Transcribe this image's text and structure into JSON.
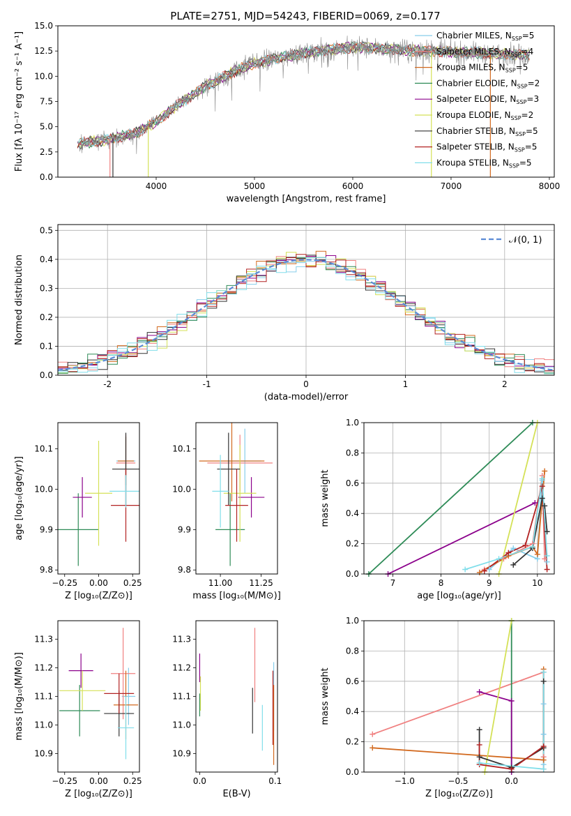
{
  "title": "PLATE=2751, MJD=54243, FIBERID=0069, z=0.177",
  "colors": {
    "Chabrier MILES": "#87ceeb",
    "Salpeter MILES": "#f08080",
    "Kroupa MILES": "#d2691e",
    "Chabrier ELODIE": "#2e8b57",
    "Salpeter ELODIE": "#8b008b",
    "Kroupa ELODIE": "#d4e157",
    "Chabrier STELIB": "#333333",
    "Salpeter STELIB": "#b22222",
    "Kroupa STELIB": "#80deea"
  },
  "chart_data": [
    {
      "id": "spectrum",
      "type": "line",
      "xlabel": "wavelength [Angstrom, rest frame]",
      "ylabel": "Flux [fλ 10⁻¹⁷ erg cm⁻² s⁻¹ A⁻¹]",
      "xlim": [
        3000,
        8050
      ],
      "ylim": [
        0,
        15
      ],
      "xticks": [
        4000,
        5000,
        6000,
        7000,
        8000
      ],
      "yticks": [
        0.0,
        2.5,
        5.0,
        7.5,
        10.0,
        12.5,
        15.0
      ],
      "legend_position": "top-right",
      "legend": [
        {
          "model": "Chabrier MILES",
          "nssp": "5"
        },
        {
          "model": "Salpeter MILES",
          "nssp": "4"
        },
        {
          "model": "Kroupa MILES",
          "nssp": "5"
        },
        {
          "model": "Chabrier ELODIE",
          "nssp": "2"
        },
        {
          "model": "Salpeter ELODIE",
          "nssp": "3"
        },
        {
          "model": "Kroupa ELODIE",
          "nssp": "2"
        },
        {
          "model": "Chabrier STELIB",
          "nssp": "5"
        },
        {
          "model": "Salpeter STELIB",
          "nssp": "5"
        },
        {
          "model": "Kroupa STELIB",
          "nssp": "5"
        }
      ],
      "continuum": {
        "x": [
          3200,
          3500,
          3800,
          4000,
          4200,
          4500,
          4800,
          5000,
          5500,
          6000,
          6500,
          7000,
          7500,
          7800
        ],
        "y": [
          3.3,
          3.7,
          4.4,
          5.5,
          7.0,
          9.0,
          10.5,
          11.3,
          12.3,
          12.9,
          12.6,
          12.4,
          12.2,
          12.1
        ]
      },
      "spikes": [
        {
          "x": 3530,
          "y": 0
        },
        {
          "x": 3560,
          "y": 0
        },
        {
          "x": 3920,
          "y": 0
        },
        {
          "x": 6800,
          "y": 0
        },
        {
          "x": 7400,
          "y": 0
        }
      ]
    },
    {
      "id": "residuals",
      "type": "histogram",
      "xlabel": "(data-model)/error",
      "ylabel": "Normed distribution",
      "xlim": [
        -2.5,
        2.5
      ],
      "ylim": [
        0,
        0.52
      ],
      "xticks": [
        -2,
        -1,
        0,
        1,
        2
      ],
      "yticks": [
        0.0,
        0.1,
        0.2,
        0.3,
        0.4,
        0.5
      ],
      "grid": true,
      "legend_position": "top-right",
      "legend": "𝒩(0, 1)",
      "bin_width": 0.1,
      "reference_curve": "normal(0,1)"
    },
    {
      "id": "age-vs-z",
      "type": "errorbar",
      "xlabel": "Z [log₁₀(Z/Z⊙)]",
      "ylabel": "age  [log₁₀(age/yr)]",
      "xlim": [
        -0.3,
        0.3
      ],
      "ylim": [
        9.79,
        10.165
      ],
      "xticks": [
        -0.25,
        0.0,
        0.25
      ],
      "xticklabels": [
        "−0.25",
        "0.00",
        "0.25"
      ],
      "yticks": [
        9.8,
        9.9,
        10.0,
        10.1
      ],
      "points": [
        {
          "model": "Chabrier MILES",
          "x": 0.2,
          "y": 10.07,
          "xerr": 0.07,
          "yerr": 0.06
        },
        {
          "model": "Salpeter MILES",
          "x": 0.2,
          "y": 10.065,
          "xerr": 0.07,
          "yerr": 0.07
        },
        {
          "model": "Kroupa MILES",
          "x": 0.2,
          "y": 10.07,
          "xerr": 0.06,
          "yerr": 0.06
        },
        {
          "model": "Chabrier ELODIE",
          "x": -0.15,
          "y": 9.9,
          "xerr": 0.15,
          "yerr": 0.09
        },
        {
          "model": "Salpeter ELODIE",
          "x": -0.12,
          "y": 9.98,
          "xerr": 0.07,
          "yerr": 0.05
        },
        {
          "model": "Kroupa ELODIE",
          "x": 0.0,
          "y": 9.99,
          "xerr": 0.1,
          "yerr": 0.13
        },
        {
          "model": "Chabrier STELIB",
          "x": 0.2,
          "y": 10.05,
          "xerr": 0.1,
          "yerr": 0.09
        },
        {
          "model": "Salpeter STELIB",
          "x": 0.2,
          "y": 9.96,
          "xerr": 0.11,
          "yerr": 0.09
        },
        {
          "model": "Kroupa STELIB",
          "x": 0.2,
          "y": 9.995,
          "xerr": 0.12,
          "yerr": 0.04
        }
      ]
    },
    {
      "id": "age-vs-mass",
      "type": "errorbar",
      "xlabel": "mass [log₁₀(M/M⊙)]",
      "ylabel": "",
      "xlim": [
        10.85,
        11.35
      ],
      "ylim": [
        9.79,
        10.165
      ],
      "xticks": [
        11.0,
        11.25
      ],
      "xticklabels": [
        "11.00",
        "11.25"
      ],
      "yticks": [
        9.8,
        9.9,
        10.0,
        10.1
      ],
      "points": [
        {
          "model": "Chabrier MILES",
          "x": 11.15,
          "y": 10.07,
          "xerr": 0.1,
          "yerr": 0.08
        },
        {
          "model": "Salpeter MILES",
          "x": 11.12,
          "y": 10.065,
          "xerr": 0.2,
          "yerr": 0.07
        },
        {
          "model": "Kroupa MILES",
          "x": 11.07,
          "y": 10.07,
          "xerr": 0.2,
          "yerr": 0.1
        },
        {
          "model": "Chabrier ELODIE",
          "x": 11.06,
          "y": 9.9,
          "xerr": 0.09,
          "yerr": 0.09
        },
        {
          "model": "Salpeter ELODIE",
          "x": 11.19,
          "y": 9.98,
          "xerr": 0.08,
          "yerr": 0.05
        },
        {
          "model": "Kroupa ELODIE",
          "x": 11.12,
          "y": 9.99,
          "xerr": 0.1,
          "yerr": 0.12
        },
        {
          "model": "Chabrier STELIB",
          "x": 11.05,
          "y": 10.05,
          "xerr": 0.07,
          "yerr": 0.09
        },
        {
          "model": "Salpeter STELIB",
          "x": 11.1,
          "y": 9.96,
          "xerr": 0.07,
          "yerr": 0.09
        },
        {
          "model": "Kroupa STELIB",
          "x": 11.0,
          "y": 9.995,
          "xerr": 0.05,
          "yerr": 0.09
        }
      ]
    },
    {
      "id": "weight-vs-age",
      "type": "line",
      "xlabel": "age  [log₁₀(age/yr)]",
      "ylabel": "mass weight",
      "xlim": [
        6.4,
        10.35
      ],
      "ylim": [
        0,
        1.0
      ],
      "xticks": [
        7,
        8,
        9,
        10
      ],
      "yticks": [
        0.0,
        0.2,
        0.4,
        0.6,
        0.8,
        1.0
      ],
      "grid": true,
      "series": [
        {
          "model": "Chabrier MILES",
          "x": [
            9.0,
            9.5,
            10.0,
            10.1,
            10.2
          ],
          "y": [
            0.03,
            0.17,
            0.1,
            0.62,
            0.08
          ]
        },
        {
          "model": "Salpeter MILES",
          "x": [
            8.9,
            9.3,
            9.9,
            10.1,
            10.15
          ],
          "y": [
            0.03,
            0.1,
            0.2,
            0.65,
            0.1
          ]
        },
        {
          "model": "Kroupa MILES",
          "x": [
            8.8,
            9.4,
            9.9,
            10.0,
            10.15
          ],
          "y": [
            0.01,
            0.12,
            0.18,
            0.13,
            0.68
          ]
        },
        {
          "model": "Chabrier ELODIE",
          "x": [
            6.5,
            9.9
          ],
          "y": [
            0.0,
            1.0
          ]
        },
        {
          "model": "Salpeter ELODIE",
          "x": [
            6.9,
            9.95
          ],
          "y": [
            0.0,
            0.47
          ]
        },
        {
          "model": "Kroupa ELODIE",
          "x": [
            9.2,
            10.0
          ],
          "y": [
            0.0,
            1.0
          ]
        },
        {
          "model": "Chabrier STELIB",
          "x": [
            9.5,
            9.9,
            10.1,
            10.15,
            10.2
          ],
          "y": [
            0.06,
            0.17,
            0.5,
            0.45,
            0.28
          ]
        },
        {
          "model": "Salpeter STELIB",
          "x": [
            8.9,
            9.4,
            9.75,
            10.1,
            10.2
          ],
          "y": [
            0.02,
            0.14,
            0.19,
            0.58,
            0.03
          ]
        },
        {
          "model": "Kroupa STELIB",
          "x": [
            8.5,
            9.2,
            9.9,
            10.1,
            10.2
          ],
          "y": [
            0.03,
            0.1,
            0.18,
            0.63,
            0.12
          ]
        }
      ]
    },
    {
      "id": "mass-vs-z",
      "type": "errorbar",
      "xlabel": "Z [log₁₀(Z/Z⊙)]",
      "ylabel": "mass [log₁₀(M/M⊙)]",
      "xlim": [
        -0.3,
        0.3
      ],
      "ylim": [
        10.835,
        11.365
      ],
      "xticks": [
        -0.25,
        0.0,
        0.25
      ],
      "xticklabels": [
        "−0.25",
        "0.00",
        "0.25"
      ],
      "yticks": [
        10.9,
        11.0,
        11.1,
        11.2,
        11.3
      ],
      "points": [
        {
          "model": "Chabrier MILES",
          "x": 0.22,
          "y": 11.1,
          "xerr": 0.05,
          "yerr": 0.1
        },
        {
          "model": "Salpeter MILES",
          "x": 0.18,
          "y": 11.18,
          "xerr": 0.09,
          "yerr": 0.16
        },
        {
          "model": "Kroupa MILES",
          "x": 0.2,
          "y": 11.07,
          "xerr": 0.09,
          "yerr": 0.12
        },
        {
          "model": "Chabrier ELODIE",
          "x": -0.14,
          "y": 11.05,
          "xerr": 0.15,
          "yerr": 0.09
        },
        {
          "model": "Salpeter ELODIE",
          "x": -0.13,
          "y": 11.19,
          "xerr": 0.09,
          "yerr": 0.06
        },
        {
          "model": "Kroupa ELODIE",
          "x": -0.12,
          "y": 11.12,
          "xerr": 0.17,
          "yerr": 0.07
        },
        {
          "model": "Chabrier STELIB",
          "x": 0.15,
          "y": 11.04,
          "xerr": 0.11,
          "yerr": 0.08
        },
        {
          "model": "Salpeter STELIB",
          "x": 0.15,
          "y": 11.11,
          "xerr": 0.11,
          "yerr": 0.07
        },
        {
          "model": "Kroupa STELIB",
          "x": 0.2,
          "y": 10.99,
          "xerr": 0.06,
          "yerr": 0.11
        }
      ]
    },
    {
      "id": "mass-vs-ebv",
      "type": "errorbar",
      "xlabel": "E(B-V)",
      "ylabel": "",
      "xlim": [
        -0.005,
        0.103
      ],
      "ylim": [
        10.835,
        11.365
      ],
      "xticks": [
        0.0,
        0.1
      ],
      "xticklabels": [
        "0.0",
        "0.1"
      ],
      "yticks": [
        10.9,
        11.0,
        11.1,
        11.2,
        11.3
      ],
      "points": [
        {
          "model": "Chabrier MILES",
          "x": 0.098,
          "y": 11.1,
          "xerr": 0,
          "yerr": 0.12
        },
        {
          "model": "Salpeter MILES",
          "x": 0.073,
          "y": 11.21,
          "xerr": 0,
          "yerr": 0.13
        },
        {
          "model": "Kroupa MILES",
          "x": 0.098,
          "y": 11.0,
          "xerr": 0,
          "yerr": 0.14
        },
        {
          "model": "Chabrier ELODIE",
          "x": 0.0,
          "y": 11.07,
          "xerr": 0,
          "yerr": 0.04
        },
        {
          "model": "Salpeter ELODIE",
          "x": 0.0,
          "y": 11.2,
          "xerr": 0,
          "yerr": 0.05
        },
        {
          "model": "Kroupa ELODIE",
          "x": 0.001,
          "y": 11.11,
          "xerr": 0,
          "yerr": 0.06
        },
        {
          "model": "Chabrier STELIB",
          "x": 0.07,
          "y": 11.05,
          "xerr": 0,
          "yerr": 0.08
        },
        {
          "model": "Salpeter STELIB",
          "x": 0.097,
          "y": 11.06,
          "xerr": 0,
          "yerr": 0.13
        },
        {
          "model": "Kroupa STELIB",
          "x": 0.083,
          "y": 10.99,
          "xerr": 0,
          "yerr": 0.08
        }
      ]
    },
    {
      "id": "weight-vs-z",
      "type": "line",
      "xlabel": "Z [log₁₀(Z/Z⊙)]",
      "ylabel": "mass weight",
      "xlim": [
        -1.38,
        0.4
      ],
      "ylim": [
        0,
        1.0
      ],
      "xticks": [
        -1.0,
        -0.5,
        0.0
      ],
      "xticklabels": [
        "−1.0",
        "−0.5",
        "0.0"
      ],
      "yticks": [
        0.0,
        0.2,
        0.4,
        0.6,
        0.8,
        1.0
      ],
      "grid": true,
      "series": [
        {
          "model": "Chabrier MILES",
          "x": [
            0.3,
            0.3,
            0.3,
            0.3
          ],
          "y": [
            0.66,
            0.45,
            0.25,
            0.05
          ]
        },
        {
          "model": "Salpeter MILES",
          "x": [
            -1.3,
            0.3,
            0.3,
            0.3
          ],
          "y": [
            0.25,
            0.66,
            0.1,
            0.02
          ]
        },
        {
          "model": "Kroupa MILES",
          "x": [
            -1.3,
            0.3,
            0.3
          ],
          "y": [
            0.16,
            0.08,
            0.68
          ]
        },
        {
          "model": "Chabrier ELODIE",
          "x": [
            0.0,
            0.0
          ],
          "y": [
            0.0,
            1.0
          ]
        },
        {
          "model": "Salpeter ELODIE",
          "x": [
            -0.3,
            0.0,
            0.0
          ],
          "y": [
            0.53,
            0.47,
            0.0
          ]
        },
        {
          "model": "Kroupa ELODIE",
          "x": [
            -0.25,
            0.0
          ],
          "y": [
            0.0,
            1.0
          ]
        },
        {
          "model": "Chabrier STELIB",
          "x": [
            -0.3,
            -0.3,
            0.0,
            0.3,
            0.3
          ],
          "y": [
            0.28,
            0.1,
            0.03,
            0.16,
            0.6
          ]
        },
        {
          "model": "Salpeter STELIB",
          "x": [
            -0.3,
            -0.3,
            0.0,
            0.3
          ],
          "y": [
            0.18,
            0.05,
            0.02,
            0.17
          ]
        },
        {
          "model": "Kroupa STELIB",
          "x": [
            -0.3,
            0.3,
            0.3
          ],
          "y": [
            0.06,
            0.02,
            0.66
          ]
        }
      ]
    }
  ]
}
